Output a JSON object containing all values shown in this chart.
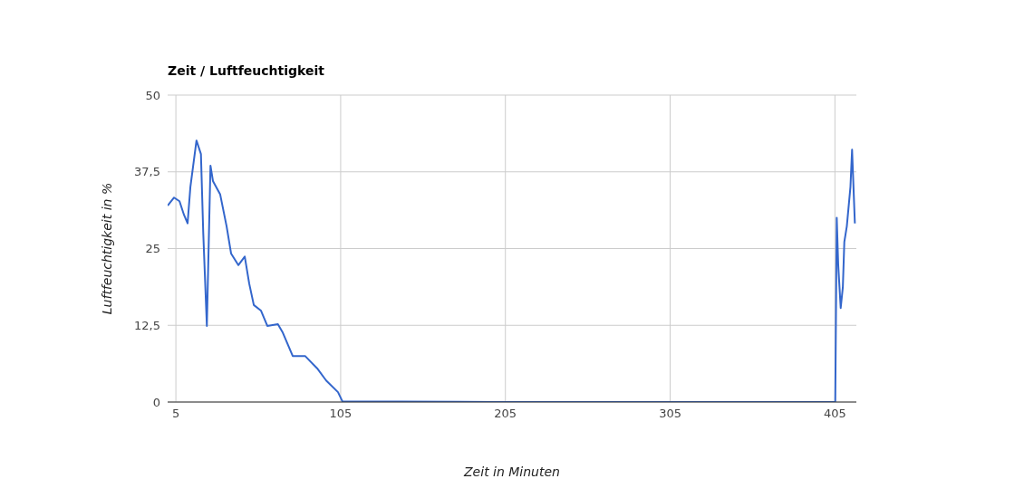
{
  "chart_data": {
    "type": "line",
    "title": "Zeit / Luftfeuchtigkeit",
    "xlabel": "Zeit in Minuten",
    "ylabel": "Luftfeuchtigkeit in %",
    "x": [
      0,
      3.9,
      7.2,
      9.9,
      12.1,
      13.8,
      17.5,
      20.2,
      21.6,
      23.8,
      26,
      27.5,
      31.9,
      35.8,
      38.5,
      42.9,
      46.8,
      49.5,
      52.3,
      56.6,
      60.5,
      66.9,
      69.7,
      75.9,
      83.4,
      90.7,
      96.2,
      103.4,
      106.1,
      200,
      300,
      404.5,
      405.2,
      406.1,
      407,
      408.5,
      409.8,
      410.7,
      412.2,
      414.4,
      415.4,
      417.1
    ],
    "series": [
      {
        "color": "#3366cc",
        "values": [
          32,
          33.3,
          32.7,
          30.5,
          29.1,
          35,
          42.6,
          40.4,
          27.6,
          12.4,
          38.5,
          36,
          33.8,
          28.6,
          24.2,
          22.3,
          23.7,
          19.3,
          15.8,
          14.9,
          12.4,
          12.7,
          11.4,
          7.5,
          7.5,
          5.5,
          3.5,
          1.6,
          0.1,
          0,
          0,
          0,
          0,
          30,
          22.3,
          15.3,
          18.7,
          26.1,
          28.6,
          35,
          41.1,
          29.1
        ]
      }
    ],
    "xlim": [
      0,
      418
    ],
    "xticks": [
      5,
      105,
      205,
      305,
      405
    ],
    "ylim": [
      0,
      50
    ],
    "yticks": [
      0,
      {
        "value": 12.5,
        "label": "12,5"
      },
      25,
      {
        "value": 37.5,
        "label": "37,5"
      },
      50
    ],
    "grid": true,
    "marker": "none",
    "line_style": "solid"
  }
}
